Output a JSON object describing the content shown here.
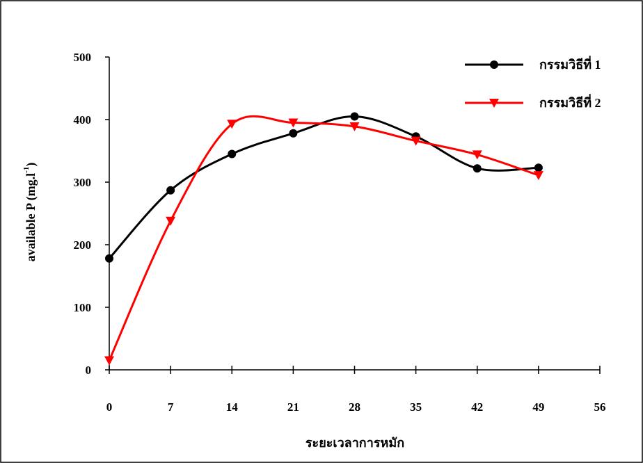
{
  "chart_data": {
    "type": "line",
    "xlabel": "ระยะเวลาการหมัก",
    "ylabel": "available P (mg.l",
    "ylabel_sup": "-1",
    "ylabel_end": ")",
    "x": [
      0,
      7,
      14,
      21,
      28,
      35,
      42,
      49
    ],
    "series": [
      {
        "name": "กรรมวิธีที่ 1",
        "color": "#000000",
        "marker": "circle",
        "values": [
          178,
          287,
          345,
          378,
          405,
          373,
          322,
          323
        ]
      },
      {
        "name": "กรรมวิธีที่ 2",
        "color": "#ff0000",
        "marker": "triangle-down",
        "values": [
          15,
          238,
          393,
          395,
          389,
          366,
          344,
          311
        ]
      }
    ],
    "xlim": [
      0,
      56
    ],
    "xticks": [
      0,
      7,
      14,
      21,
      28,
      35,
      42,
      49,
      56
    ],
    "ylim": [
      0,
      500
    ],
    "yticks": [
      0,
      100,
      200,
      300,
      400,
      500
    ],
    "smooth": true,
    "legend": "upper right"
  }
}
